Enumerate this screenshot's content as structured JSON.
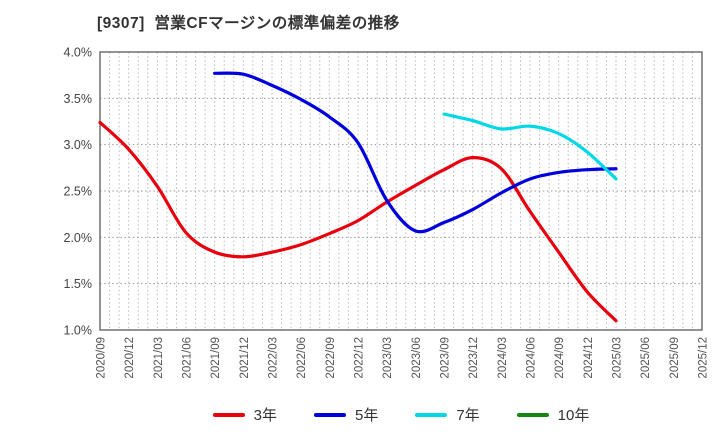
{
  "chart_data": {
    "type": "line",
    "title": "[9307]  営業CFマージンの標準偏差の推移",
    "categories": [
      "2020/09",
      "2020/12",
      "2021/03",
      "2021/06",
      "2021/09",
      "2021/12",
      "2022/03",
      "2022/06",
      "2022/09",
      "2022/12",
      "2023/03",
      "2023/06",
      "2023/09",
      "2023/12",
      "2024/03",
      "2024/06",
      "2024/09",
      "2024/12",
      "2025/03",
      "2025/06",
      "2025/09",
      "2025/12"
    ],
    "series": [
      {
        "name": "3年",
        "color": "#e8000c",
        "values": [
          3.24,
          2.95,
          2.55,
          2.05,
          1.84,
          1.79,
          1.84,
          1.92,
          2.04,
          2.18,
          2.38,
          2.56,
          2.73,
          2.86,
          2.74,
          2.28,
          1.84,
          1.41,
          1.1,
          null,
          null,
          null
        ]
      },
      {
        "name": "5年",
        "color": "#0000dc",
        "values": [
          null,
          null,
          null,
          null,
          3.77,
          3.76,
          3.64,
          3.49,
          3.3,
          3.02,
          2.4,
          2.07,
          2.16,
          2.3,
          2.48,
          2.63,
          2.7,
          2.73,
          2.74,
          null,
          null,
          null
        ]
      },
      {
        "name": "7年",
        "color": "#00d8e8",
        "values": [
          null,
          null,
          null,
          null,
          null,
          null,
          null,
          null,
          null,
          null,
          null,
          null,
          3.33,
          3.26,
          3.17,
          3.2,
          3.12,
          2.92,
          2.63,
          null,
          null,
          null
        ]
      },
      {
        "name": "10年",
        "color": "#128812",
        "values": [
          null,
          null,
          null,
          null,
          null,
          null,
          null,
          null,
          null,
          null,
          null,
          null,
          null,
          null,
          null,
          null,
          null,
          null,
          null,
          null,
          null,
          null
        ]
      }
    ],
    "xlabel": "",
    "ylabel": "",
    "ylim": [
      1.0,
      4.0
    ],
    "ytick_step": 0.5,
    "ytick_labels": [
      "4.0%",
      "3.5%",
      "3.0%",
      "2.5%",
      "2.0%",
      "1.5%",
      "1.0%"
    ],
    "grid": "dotted, horizontal every 0.5%, vertical monthly",
    "legend_position": "bottom",
    "minor_x_divisions_per_category": 3
  },
  "colors": {
    "title_text": "#333333",
    "ytick_text": "#444444",
    "xtick_text": "#555555",
    "axis_border": "#666666",
    "grid_h": "#999999",
    "grid_v": "#b8b8b8",
    "background": "#ffffff"
  }
}
